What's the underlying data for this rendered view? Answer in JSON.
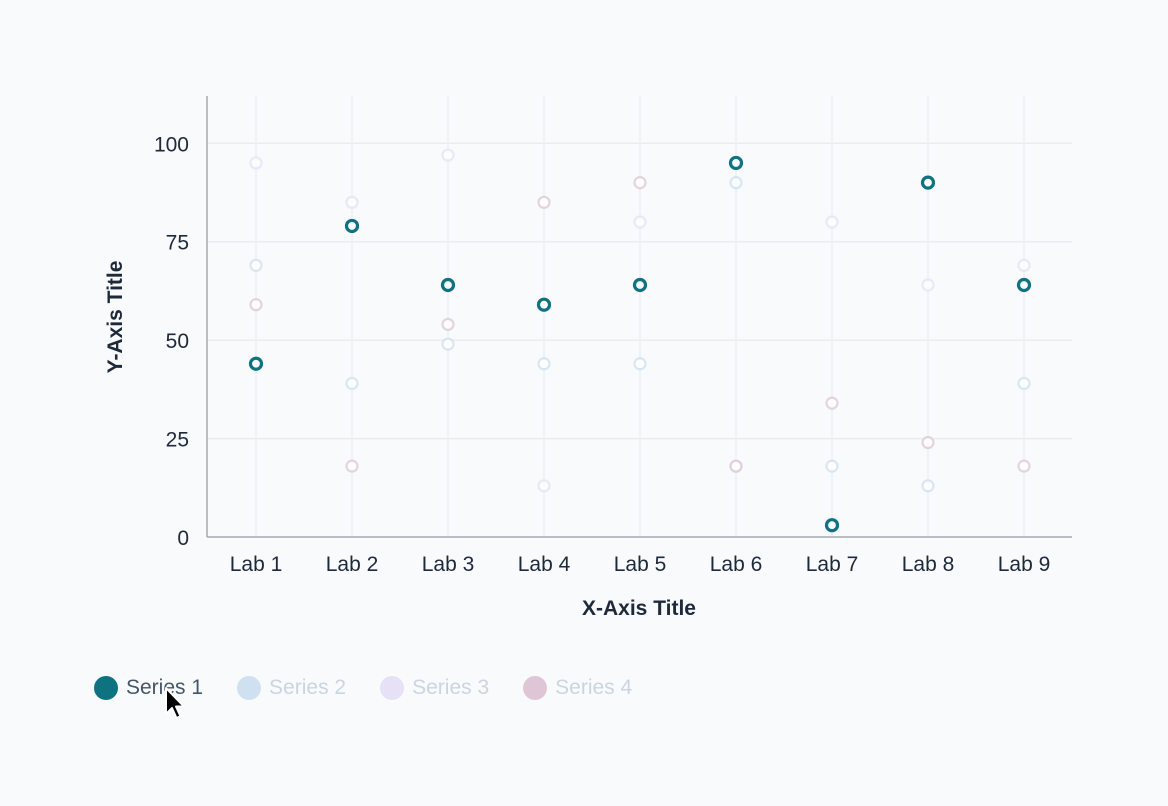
{
  "chart_data": {
    "type": "scatter",
    "title": "",
    "xlabel": "X-Axis Title",
    "ylabel": "Y-Axis Title",
    "categories": [
      "Lab 1",
      "Lab 2",
      "Lab 3",
      "Lab 4",
      "Lab 5",
      "Lab 6",
      "Lab 7",
      "Lab 8",
      "Lab 9"
    ],
    "ylim": [
      0,
      112
    ],
    "yticks": [
      0,
      25,
      50,
      75,
      100
    ],
    "grid": true,
    "legend_position": "bottom-left",
    "series": [
      {
        "name": "Series 1",
        "color": "#0e7281",
        "active": true,
        "values": [
          44,
          79,
          64,
          59,
          64,
          95,
          3,
          90,
          64
        ]
      },
      {
        "name": "Series 2",
        "color": "#cfe0f0",
        "active": false,
        "values": [
          69,
          39,
          49,
          44,
          44,
          90,
          18,
          13,
          39
        ]
      },
      {
        "name": "Series 3",
        "color": "#e6e1f7",
        "active": false,
        "values": [
          95,
          85,
          97,
          13,
          80,
          18,
          80,
          64,
          69
        ]
      },
      {
        "name": "Series 4",
        "color": "#dfc6d6",
        "active": false,
        "values": [
          59,
          18,
          54,
          85,
          90,
          18,
          34,
          24,
          18
        ]
      }
    ]
  },
  "legend": {
    "active_text_color": "#475569",
    "inactive_text_color": "#cbd5e1"
  }
}
